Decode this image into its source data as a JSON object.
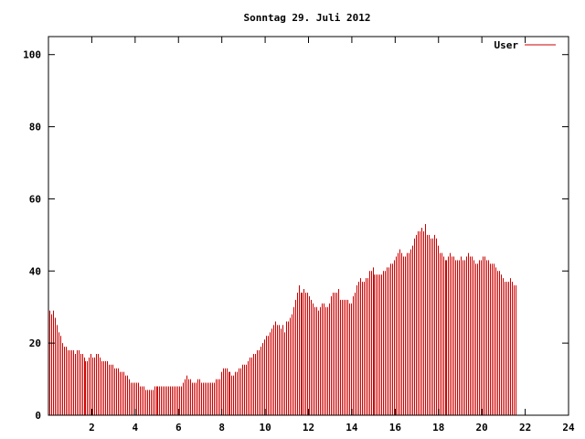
{
  "chart_data": {
    "type": "bar",
    "title": "Sonntag 29. Juli 2012",
    "xlabel": "",
    "ylabel": "",
    "xlim": [
      0,
      24
    ],
    "ylim": [
      0,
      105
    ],
    "x_ticks": [
      2,
      4,
      6,
      8,
      10,
      12,
      14,
      16,
      18,
      20,
      22,
      24
    ],
    "y_ticks": [
      0,
      20,
      40,
      60,
      80,
      100
    ],
    "grid": false,
    "legend_position": "top-right",
    "series": [
      {
        "name": "User",
        "color": "#cc0000",
        "x_start": 0,
        "x_step": 0.0833,
        "values": [
          29,
          28,
          29,
          27,
          25,
          23,
          22,
          20,
          19,
          19,
          18,
          18,
          18,
          18,
          17,
          18,
          18,
          17,
          17,
          16,
          15,
          15,
          16,
          17,
          16,
          16,
          17,
          17,
          16,
          15,
          15,
          15,
          15,
          14,
          14,
          14,
          13,
          13,
          13,
          12,
          12,
          12,
          11,
          11,
          10,
          9,
          9,
          9,
          9,
          9,
          8,
          8,
          8,
          7,
          7,
          7,
          7,
          7,
          8,
          8,
          8,
          8,
          8,
          8,
          8,
          8,
          8,
          8,
          8,
          8,
          8,
          8,
          8,
          8,
          9,
          10,
          11,
          10,
          10,
          9,
          9,
          9,
          10,
          10,
          9,
          9,
          9,
          9,
          9,
          9,
          9,
          9,
          10,
          10,
          10,
          12,
          13,
          13,
          13,
          12,
          12,
          11,
          11,
          12,
          12,
          13,
          13,
          14,
          14,
          14,
          15,
          16,
          16,
          17,
          17,
          18,
          18,
          19,
          20,
          21,
          22,
          22,
          23,
          24,
          25,
          26,
          25,
          25,
          24,
          25,
          23,
          26,
          26,
          27,
          28,
          30,
          32,
          34,
          36,
          34,
          34,
          35,
          34,
          34,
          33,
          32,
          31,
          30,
          30,
          29,
          30,
          31,
          31,
          30,
          30,
          31,
          33,
          34,
          34,
          34,
          35,
          32,
          32,
          32,
          32,
          32,
          31,
          31,
          33,
          34,
          36,
          37,
          38,
          37,
          37,
          38,
          38,
          40,
          40,
          41,
          39,
          39,
          39,
          39,
          39,
          40,
          40,
          41,
          41,
          42,
          42,
          43,
          44,
          45,
          46,
          45,
          44,
          44,
          45,
          45,
          46,
          47,
          49,
          50,
          51,
          51,
          52,
          51,
          53,
          50,
          50,
          49,
          49,
          50,
          49,
          47,
          45,
          45,
          44,
          43,
          43,
          44,
          45,
          44,
          44,
          43,
          43,
          43,
          44,
          43,
          43,
          44,
          45,
          44,
          44,
          43,
          42,
          42,
          43,
          43,
          44,
          44,
          43,
          43,
          42,
          42,
          42,
          41,
          40,
          40,
          39,
          38,
          37,
          37,
          37,
          38,
          37,
          36,
          36
        ]
      }
    ]
  }
}
